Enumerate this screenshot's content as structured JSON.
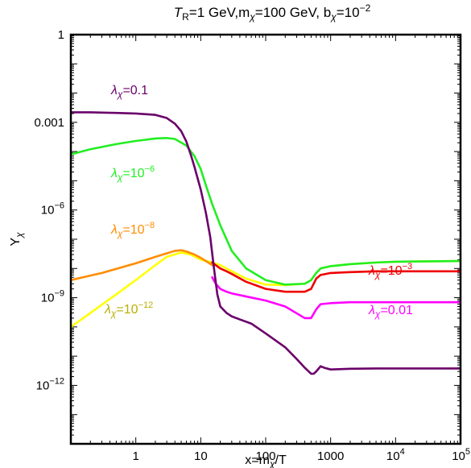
{
  "chart_data": {
    "type": "line",
    "title_parts": [
      "T",
      "R",
      "=1 GeV,m",
      "χ",
      "=100 GeV, b",
      "χ",
      "=10",
      "−2"
    ],
    "xlabel": "x=m",
    "xlabel_sub": "χ",
    "xlabel_tail": "/T",
    "ylabel": "Y",
    "ylabel_sub": "χ",
    "xscale": "log",
    "yscale": "log",
    "xlim": [
      0.1,
      100000
    ],
    "ylim": [
      1e-14,
      1
    ],
    "grid": false,
    "x_ticks": [
      {
        "value": 1,
        "label": "1"
      },
      {
        "value": 10,
        "label": "10"
      },
      {
        "value": 100,
        "label": "100"
      },
      {
        "value": 1000,
        "label": "1000"
      },
      {
        "value": 10000,
        "base": "10",
        "exp": "4"
      },
      {
        "value": 100000,
        "base": "10",
        "exp": "5"
      }
    ],
    "y_ticks": [
      {
        "value": 1e-12,
        "base": "10",
        "exp": "−12"
      },
      {
        "value": 1e-09,
        "base": "10",
        "exp": "−9"
      },
      {
        "value": 1e-06,
        "base": "10",
        "exp": "−6"
      },
      {
        "value": 0.001,
        "label": "0.001"
      },
      {
        "value": 1,
        "label": "1"
      }
    ],
    "series": [
      {
        "id": "s1e-12",
        "color": "#ffff00",
        "label": {
          "lam": "λ",
          "sub": "χ",
          "eq": "=10",
          "exp": "−12"
        },
        "label_color": "#b8b000",
        "x": [
          0.1,
          0.2,
          0.5,
          1,
          2,
          3,
          5,
          7,
          10,
          15,
          20,
          30,
          50,
          100,
          200,
          400,
          500,
          600,
          700,
          1000,
          2000,
          5000,
          10000,
          100000
        ],
        "y": [
          1e-10,
          3e-10,
          1.3e-09,
          4e-09,
          1.3e-08,
          2.5e-08,
          3.5e-08,
          3e-08,
          2e-08,
          1.6e-08,
          1.3e-08,
          8e-09,
          4.5e-09,
          2.8e-09,
          2.7e-09,
          3e-09,
          4e-09,
          7e-09,
          1e-08,
          1.2e-08,
          1.4e-08,
          1.6e-08,
          1.7e-08,
          1.8e-08
        ]
      },
      {
        "id": "s1e-8",
        "color": "#ff8c00",
        "label": {
          "lam": "λ",
          "sub": "χ",
          "eq": "=10",
          "exp": "−8"
        },
        "label_color": "#ff8c00",
        "x": [
          0.1,
          0.3,
          1,
          2,
          3,
          4,
          5,
          6,
          8,
          10,
          12,
          15
        ],
        "y": [
          4e-09,
          7e-09,
          1.5e-08,
          2.5e-08,
          3.3e-08,
          4e-08,
          4.2e-08,
          3.8e-08,
          3e-08,
          2.3e-08,
          1.8e-08,
          1.3e-08
        ]
      },
      {
        "id": "s1e-6",
        "color": "#22ee22",
        "label": {
          "lam": "λ",
          "sub": "χ",
          "eq": "=10",
          "exp": "−6"
        },
        "label_color": "#22ee22",
        "x": [
          0.1,
          0.2,
          0.5,
          1,
          2,
          3,
          4,
          6,
          8,
          10,
          12,
          15,
          20,
          30,
          50,
          100,
          200,
          400,
          500,
          600,
          700,
          1000,
          2000,
          5000,
          10000,
          100000
        ],
        "y": [
          8e-05,
          0.00012,
          0.00018,
          0.00023,
          0.00028,
          0.00029,
          0.00027,
          0.00016,
          7e-05,
          2.5e-05,
          7e-06,
          1.6e-06,
          3e-07,
          4e-08,
          1e-08,
          4e-09,
          2.8e-09,
          3e-09,
          4e-09,
          7e-09,
          1e-08,
          1.2e-08,
          1.4e-08,
          1.6e-08,
          1.7e-08,
          1.8e-08
        ]
      },
      {
        "id": "s1e-3",
        "color": "#ee0000",
        "label": {
          "lam": "λ",
          "sub": "χ",
          "eq": "=10",
          "exp": "−3"
        },
        "label_color": "#ee0000",
        "x": [
          15,
          17,
          20,
          25,
          30,
          50,
          100,
          200,
          400,
          500,
          600,
          700,
          1000,
          2000,
          5000,
          10000,
          100000
        ],
        "y": [
          1.6e-08,
          1.3e-08,
          1e-08,
          8e-09,
          6.5e-09,
          3.5e-09,
          2e-09,
          1.6e-09,
          1.6e-09,
          2e-09,
          4.5e-09,
          6e-09,
          7e-09,
          7.5e-09,
          8e-09,
          8e-09,
          8e-09
        ]
      },
      {
        "id": "s001",
        "color": "#ff00ff",
        "label": {
          "lam": "λ",
          "sub": "χ",
          "eq": "=0.01"
        },
        "label_color": "#ff00ff",
        "x": [
          15,
          17,
          20,
          25,
          30,
          50,
          100,
          200,
          400,
          500,
          600,
          700,
          1000,
          2000,
          5000,
          10000,
          100000
        ],
        "y": [
          5e-09,
          3e-09,
          2e-09,
          1.6e-09,
          1.4e-09,
          1.1e-09,
          8e-10,
          5e-10,
          2e-10,
          2e-10,
          4e-10,
          6e-10,
          6.5e-10,
          7e-10,
          7e-10,
          7e-10,
          7e-10
        ]
      },
      {
        "id": "s01",
        "color": "#6a006a",
        "label": {
          "lam": "λ",
          "sub": "χ",
          "eq": "=0.1"
        },
        "label_color": "#6a006a",
        "x": [
          0.1,
          0.2,
          0.5,
          1,
          2,
          3,
          4,
          5,
          6,
          7,
          8,
          10,
          12,
          14,
          16,
          18,
          20,
          25,
          30,
          40,
          60,
          100,
          200,
          300,
          400,
          500,
          550,
          600,
          700,
          800,
          1000,
          2000,
          5000,
          10000,
          100000
        ],
        "y": [
          0.0022,
          0.0022,
          0.0021,
          0.002,
          0.0018,
          0.0014,
          0.0009,
          0.0005,
          0.00022,
          8e-05,
          3e-05,
          5e-06,
          8e-07,
          1.2e-07,
          1e-08,
          1.3e-09,
          5e-10,
          3e-10,
          2.3e-10,
          1.8e-10,
          1.3e-10,
          6e-11,
          2e-11,
          8e-12,
          4e-12,
          2.5e-12,
          2.5e-12,
          3e-12,
          4.5e-12,
          4e-12,
          3.5e-12,
          3.7e-12,
          3.8e-12,
          3.8e-12,
          3.8e-12
        ]
      }
    ]
  }
}
